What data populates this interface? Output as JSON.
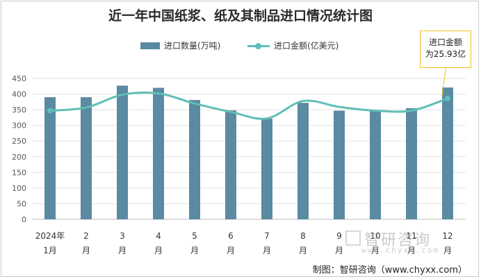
{
  "chart_data": {
    "type": "bar+line",
    "title": "近一年中国纸浆、纸及其制品进口情况统计图",
    "categories": [
      [
        "2024年",
        "1月"
      ],
      [
        "2",
        "月"
      ],
      [
        "3",
        "月"
      ],
      [
        "4",
        "月"
      ],
      [
        "5",
        "月"
      ],
      [
        "6",
        "月"
      ],
      [
        "7",
        "月"
      ],
      [
        "8",
        "月"
      ],
      [
        "9",
        "月"
      ],
      [
        "10",
        "月"
      ],
      [
        "11",
        "月"
      ],
      [
        "12",
        "月"
      ]
    ],
    "yticks": [
      "0",
      "50",
      "100",
      "150",
      "200",
      "250",
      "300",
      "350",
      "400",
      "450"
    ],
    "ylim": [
      0,
      450
    ],
    "series": [
      {
        "name": "进口数量(万吨)",
        "type": "bar",
        "color": "#5b8aa3",
        "values": [
          390,
          390,
          427,
          420,
          381,
          348,
          321,
          372,
          347,
          347,
          355,
          421
        ]
      },
      {
        "name": "进口金额(亿美元)",
        "type": "line",
        "color": "#5fbfb6",
        "values": [
          347,
          357,
          398,
          402,
          370,
          343,
          322,
          378,
          359,
          347,
          347,
          386
        ]
      }
    ],
    "legend_position": "top",
    "grid": true
  },
  "annotation": {
    "lines": [
      "进口金额",
      "为25.93亿"
    ]
  },
  "watermark": {
    "text": "智研咨询",
    "url": "www.chyxx.com"
  },
  "source": "制图：智研咨询（www.chyxx.com）"
}
